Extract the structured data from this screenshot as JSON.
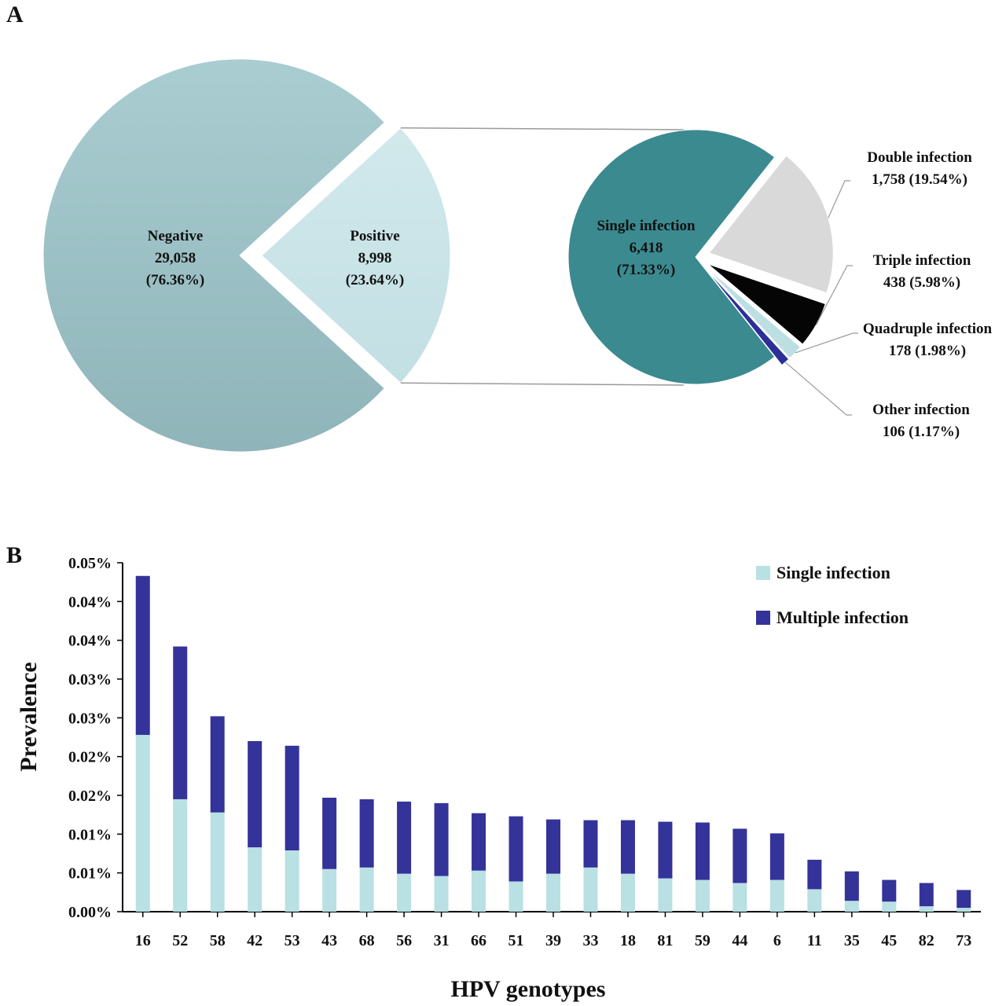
{
  "panels": {
    "a_label": "A",
    "b_label": "B"
  },
  "chart_data": [
    {
      "type": "pie",
      "panel": "A",
      "slices": [
        {
          "name": "Negative",
          "count": "29,058",
          "percent": "(76.36%)",
          "value": 76.36,
          "color": "#a4c8cc"
        },
        {
          "name": "Positive",
          "count": "8,998",
          "percent": "(23.64%)",
          "value": 23.64,
          "color": "#cde7eb"
        }
      ]
    },
    {
      "type": "pie",
      "panel": "A",
      "slices": [
        {
          "name": "Single infection",
          "count": "6,418",
          "percent": "(71.33%)",
          "value": 71.33,
          "color": "#3b8a90",
          "label_line2": "6,418",
          "label_line3": "(71.33%)"
        },
        {
          "name": "Double infection",
          "count": "1,758",
          "percent": "(19.54%)",
          "value": 19.54,
          "color": "#d9d9d9",
          "label_line2": "1,758 (19.54%)"
        },
        {
          "name": "Triple infection",
          "count": "438",
          "percent": "(5.98%)",
          "value": 5.98,
          "color": "#050505",
          "label_line2": "438 (5.98%)"
        },
        {
          "name": "Quadruple infection",
          "count": "178",
          "percent": "(1.98%)",
          "value": 1.98,
          "color": "#bcdfe2",
          "label_line2": "178 (1.98%)"
        },
        {
          "name": "Other infection",
          "count": "106",
          "percent": "(1.17%)",
          "value": 1.17,
          "color": "#2b2f96",
          "label_line2": "106 (1.17%)"
        }
      ]
    },
    {
      "type": "bar",
      "stacked": true,
      "panel": "B",
      "xlabel": "HPV genotypes",
      "ylabel": "Prevalence",
      "ylim": [
        0,
        0.045
      ],
      "ytick_values": [
        0,
        0.005,
        0.01,
        0.015,
        0.02,
        0.025,
        0.03,
        0.035,
        0.04,
        0.045
      ],
      "ytick_labels": [
        "0.00%",
        "0.01%",
        "0.01%",
        "0.02%",
        "0.02%",
        "0.03%",
        "0.03%",
        "0.04%",
        "0.04%",
        "0.05%"
      ],
      "grid": false,
      "legend_position": "top-right",
      "categories": [
        "16",
        "52",
        "58",
        "42",
        "53",
        "43",
        "68",
        "56",
        "31",
        "66",
        "51",
        "39",
        "33",
        "18",
        "81",
        "59",
        "44",
        "6",
        "11",
        "35",
        "45",
        "82",
        "73"
      ],
      "series": [
        {
          "name": "Single infection",
          "color": "#b9e0e3",
          "values": [
            0.0228,
            0.0145,
            0.0128,
            0.0083,
            0.0079,
            0.0055,
            0.0057,
            0.0049,
            0.0046,
            0.0053,
            0.0039,
            0.0049,
            0.0057,
            0.0049,
            0.0043,
            0.0041,
            0.0037,
            0.0041,
            0.0029,
            0.0014,
            0.0013,
            0.0007,
            0.0005
          ]
        },
        {
          "name": "Multiple infection",
          "color": "#333399",
          "values": [
            0.0205,
            0.0197,
            0.0124,
            0.0137,
            0.0135,
            0.0092,
            0.0088,
            0.0093,
            0.0094,
            0.0074,
            0.0084,
            0.007,
            0.0061,
            0.0069,
            0.0073,
            0.0074,
            0.007,
            0.006,
            0.0038,
            0.0038,
            0.0028,
            0.003,
            0.0023
          ]
        }
      ]
    }
  ]
}
